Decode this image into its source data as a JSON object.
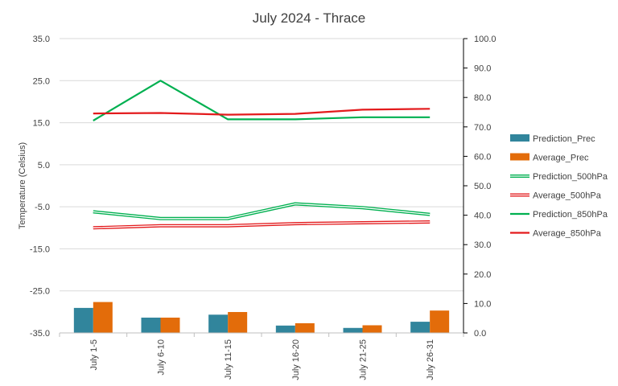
{
  "chart_data": {
    "type": "bar",
    "title": "July 2024 - Thrace",
    "ylabel": "Temperature (Celsius)",
    "y2label": "",
    "xlabel": "",
    "categories": [
      "July 1-5",
      "July 6-10",
      "July 11-15",
      "July 16-20",
      "July 21-25",
      "July 26-31"
    ],
    "ylim": [
      -35,
      35
    ],
    "yticks": [
      "35.0",
      "25.0",
      "15.0",
      "5.0",
      "-5.0",
      "-15.0",
      "-25.0",
      "-35.0"
    ],
    "y2lim": [
      0,
      100
    ],
    "y2ticks": [
      "100.0",
      "90.0",
      "80.0",
      "70.0",
      "60.0",
      "50.0",
      "40.0",
      "30.0",
      "20.0",
      "10.0",
      "0.0"
    ],
    "grid": true,
    "legend": "right",
    "series": [
      {
        "name": "Prediction_Prec",
        "kind": "bar",
        "axis": "secondary",
        "color": "#31859c",
        "values": [
          8.5,
          5.2,
          6.2,
          2.5,
          1.7,
          3.8
        ]
      },
      {
        "name": "Average_Prec",
        "kind": "bar",
        "axis": "secondary",
        "color": "#e36c0a",
        "values": [
          10.5,
          5.2,
          7.1,
          3.3,
          2.6,
          7.6
        ]
      },
      {
        "name": "Prediction_500hPa",
        "kind": "line",
        "style": "double",
        "axis": "primary",
        "color": "#00b050",
        "values": [
          -6.2,
          -7.8,
          -7.8,
          -4.3,
          -5.2,
          -6.8
        ]
      },
      {
        "name": "Average_500hPa",
        "kind": "line",
        "style": "double",
        "axis": "primary",
        "color": "#e31a1c",
        "values": [
          -10.0,
          -9.5,
          -9.5,
          -9.0,
          -8.8,
          -8.6
        ]
      },
      {
        "name": "Prediction_850hPa",
        "kind": "line",
        "axis": "primary",
        "color": "#00b050",
        "values": [
          15.5,
          25.0,
          15.8,
          15.8,
          16.3,
          16.3
        ]
      },
      {
        "name": "Average_850hPa",
        "kind": "line",
        "axis": "primary",
        "color": "#e31a1c",
        "values": [
          17.2,
          17.3,
          16.9,
          17.1,
          18.1,
          18.3
        ]
      }
    ]
  }
}
